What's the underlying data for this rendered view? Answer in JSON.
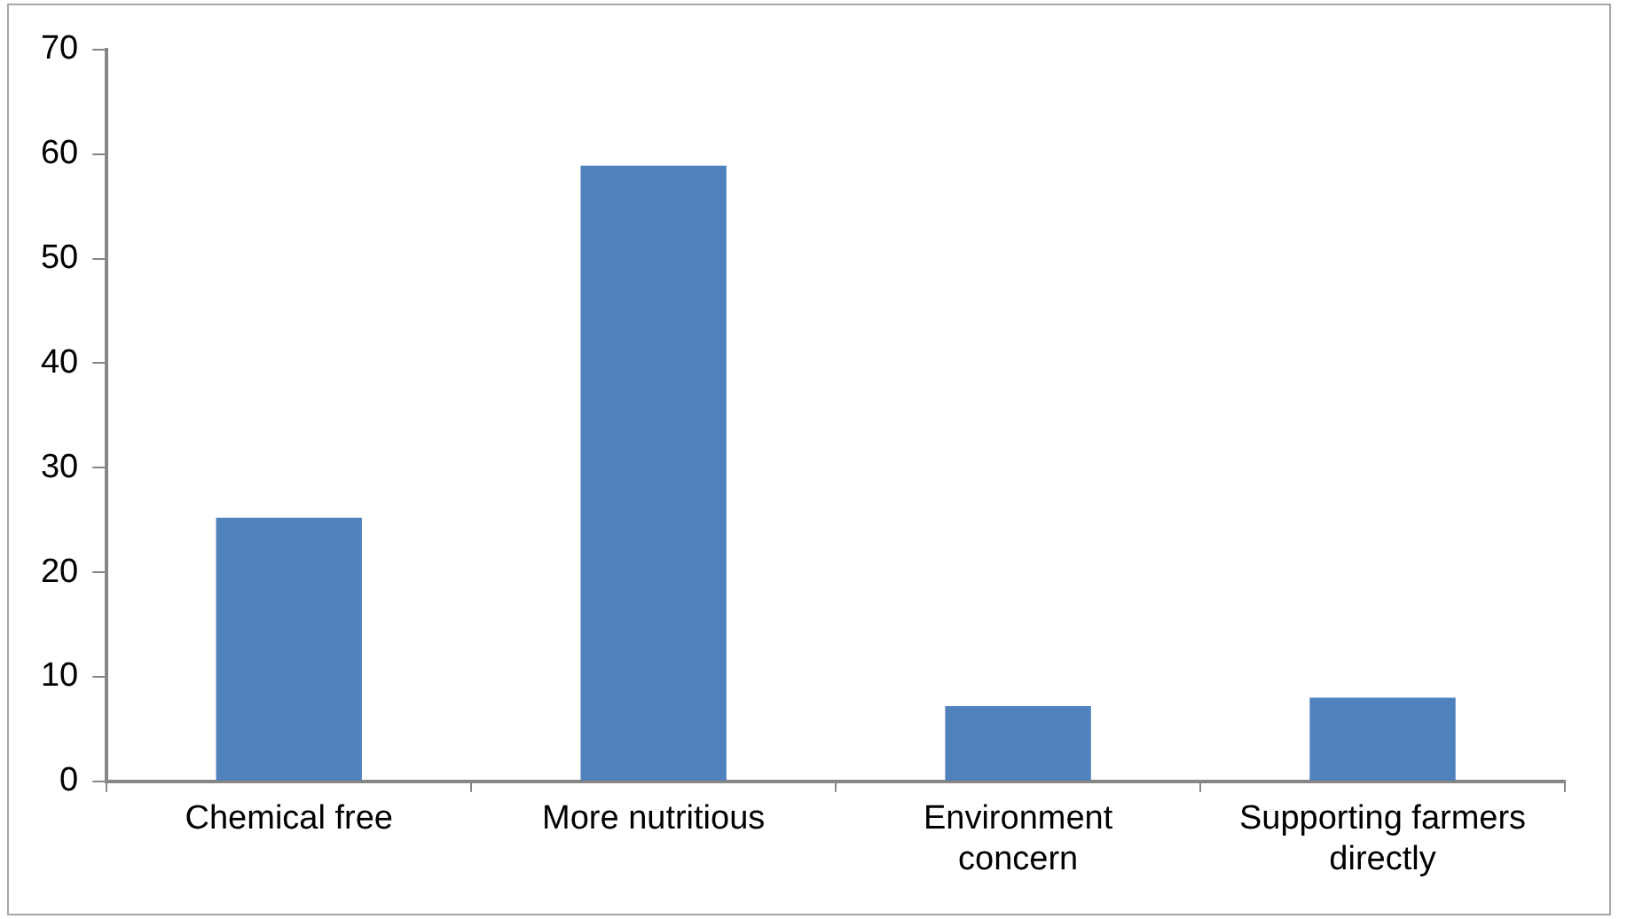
{
  "chart_data": {
    "type": "bar",
    "categories": [
      "Chemical free",
      "More nutritious",
      "Environment concern",
      "Supporting farmers directly"
    ],
    "values": [
      25.2,
      58.9,
      7.2,
      8.0
    ],
    "color": "#4f81bd",
    "ylim": [
      0,
      70
    ],
    "yticks": [
      0,
      10,
      20,
      30,
      40,
      50,
      60,
      70
    ],
    "grid": false,
    "legend": false
  }
}
